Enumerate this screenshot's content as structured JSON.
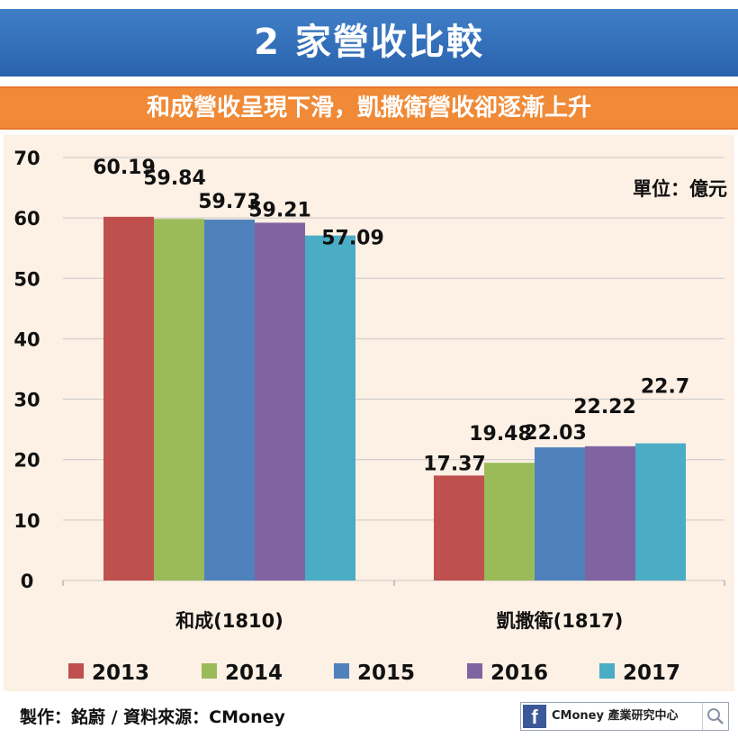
{
  "header": {
    "title": "2 家營收比較",
    "subtitle": "和成營收呈現下滑，凱撒衛營收卻逐漸上升"
  },
  "chart_data": {
    "type": "bar",
    "categories": [
      "和成(1810)",
      "凱撒衛(1817)"
    ],
    "series": [
      {
        "name": "2013",
        "values": [
          60.19,
          17.37
        ],
        "labels": [
          "60.19",
          "17.37"
        ],
        "color": "#c0504d"
      },
      {
        "name": "2014",
        "values": [
          59.84,
          19.48
        ],
        "labels": [
          "59.84",
          "19.48"
        ],
        "color": "#9bbb59"
      },
      {
        "name": "2015",
        "values": [
          59.73,
          22.03
        ],
        "labels": [
          "59.73",
          "22.03"
        ],
        "color": "#4f81bd"
      },
      {
        "name": "2016",
        "values": [
          59.21,
          22.22
        ],
        "labels": [
          "59.21",
          "22.22"
        ],
        "color": "#8064a2"
      },
      {
        "name": "2017",
        "values": [
          57.09,
          22.7
        ],
        "labels": [
          "57.09",
          "22.7"
        ],
        "color": "#4bacc6"
      }
    ],
    "ylim": [
      0,
      70
    ],
    "yticks": [
      "0",
      "10",
      "20",
      "30",
      "40",
      "50",
      "60",
      "70"
    ],
    "unit_note": "單位：億元",
    "grid": true,
    "legend_position": "bottom"
  },
  "footer": {
    "credit": "製作：銘蔚 / 資料來源：CMoney",
    "badge_text": "CMoney 產業研究中心",
    "badge_icon": "f"
  }
}
